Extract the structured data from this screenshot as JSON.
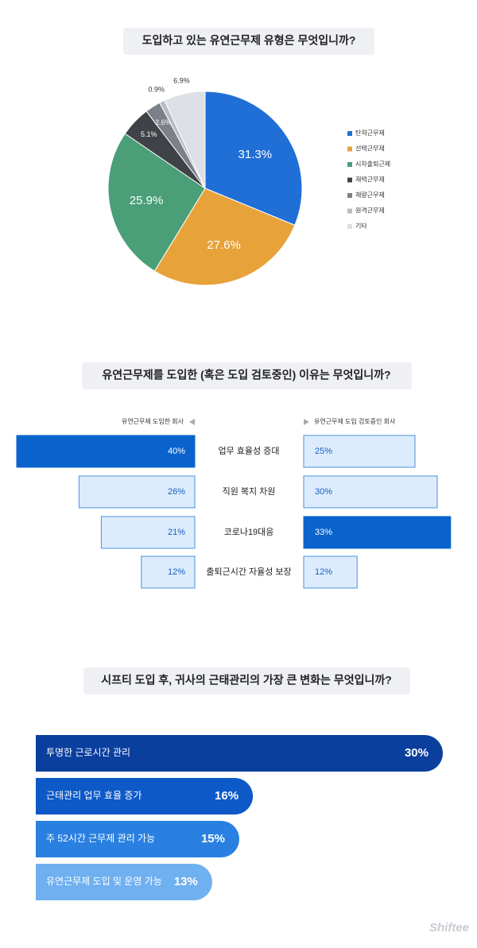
{
  "chart_data": [
    {
      "type": "pie",
      "title": "도입하고 있는 유연근무제 유형은 무엇입니까?",
      "categories": [
        "탄력근무제",
        "선택근무제",
        "시차출퇴근제",
        "재택근무제",
        "재량근무제",
        "원격근무제",
        "기타"
      ],
      "values": [
        31.3,
        27.6,
        25.9,
        5.1,
        2.6,
        0.9,
        6.9
      ],
      "value_labels": [
        "31.3%",
        "27.6%",
        "25.9%",
        "5.1%",
        "2.6%",
        "0.9%",
        "6.9%"
      ],
      "colors": [
        "#1f6fd6",
        "#e8a23a",
        "#4a9e78",
        "#3f4247",
        "#7c8088",
        "#b8bcc4",
        "#dde0e6"
      ]
    },
    {
      "type": "butterfly",
      "title": "유연근무제를 도입한 (혹은 도입 검토중인) 이유는 무엇입니까?",
      "categories": [
        "업무 효율성 증대",
        "직원 복지 차원",
        "코로나19대응",
        "출퇴근시간 자율성 보장"
      ],
      "series": [
        {
          "name": "유연근무제 도입한 회사",
          "color": "#dcecfc",
          "highlight_color": "#0a63cc",
          "values": [
            40,
            26,
            21,
            12
          ],
          "value_labels": [
            "40%",
            "26%",
            "21%",
            "12%"
          ]
        },
        {
          "name": "유연근무제 도입 검토중인 회사",
          "color": "#dcecfc",
          "highlight_color": "#0a63cc",
          "values": [
            25,
            30,
            33,
            12
          ],
          "value_labels": [
            "25%",
            "30%",
            "33%",
            "12%"
          ]
        }
      ]
    },
    {
      "type": "bar",
      "title": "시프티 도입 후, 귀사의 근태관리의 가장 큰 변화는 무엇입니까?",
      "categories": [
        "투명한 근로시간 관리",
        "근태관리 업무 효율 증가",
        "주 52시간 근무제 관리 가능",
        "유연근무제 도입 및 운영 가능"
      ],
      "values": [
        30,
        16,
        15,
        13
      ],
      "value_labels": [
        "30%",
        "16%",
        "15%",
        "13%"
      ],
      "colors": [
        "#0b3f9e",
        "#0d59c8",
        "#2a80e0",
        "#6fb0f0"
      ]
    }
  ],
  "brand": "Shiftee"
}
